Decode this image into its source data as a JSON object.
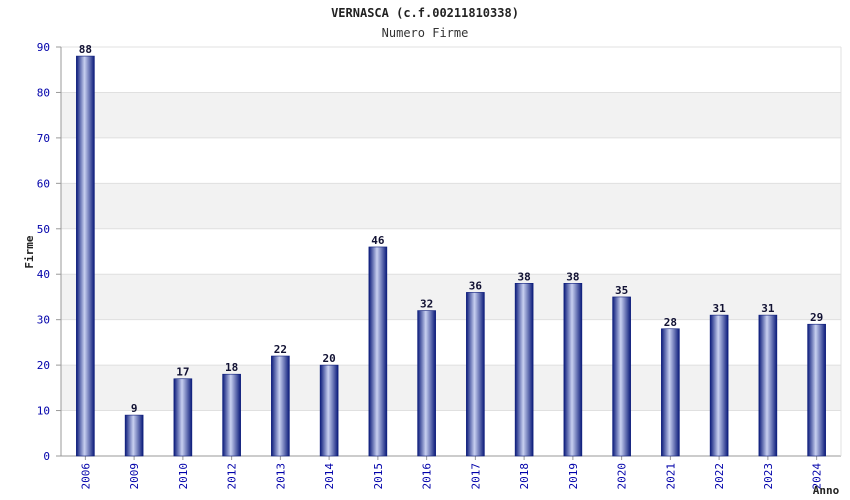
{
  "chart_data": {
    "type": "bar",
    "title": "VERNASCA (c.f.00211810338)",
    "subtitle": "Numero Firme",
    "xlabel": "Anno",
    "ylabel": "Firme",
    "ylim": [
      0,
      90
    ],
    "yticks": [
      0,
      10,
      20,
      30,
      40,
      50,
      60,
      70,
      80,
      90
    ],
    "categories": [
      "2006",
      "2009",
      "2010",
      "2012",
      "2013",
      "2014",
      "2015",
      "2016",
      "2017",
      "2018",
      "2019",
      "2020",
      "2021",
      "2022",
      "2023",
      "2024"
    ],
    "values": [
      88,
      9,
      17,
      18,
      22,
      20,
      46,
      32,
      36,
      38,
      38,
      35,
      28,
      31,
      31,
      29
    ],
    "grid": true,
    "colors": {
      "bar_dark": "#0a1a7a",
      "bar_light": "#c8d0f0",
      "band": "#f2f2f2",
      "tick_text": "#0000aa"
    }
  }
}
